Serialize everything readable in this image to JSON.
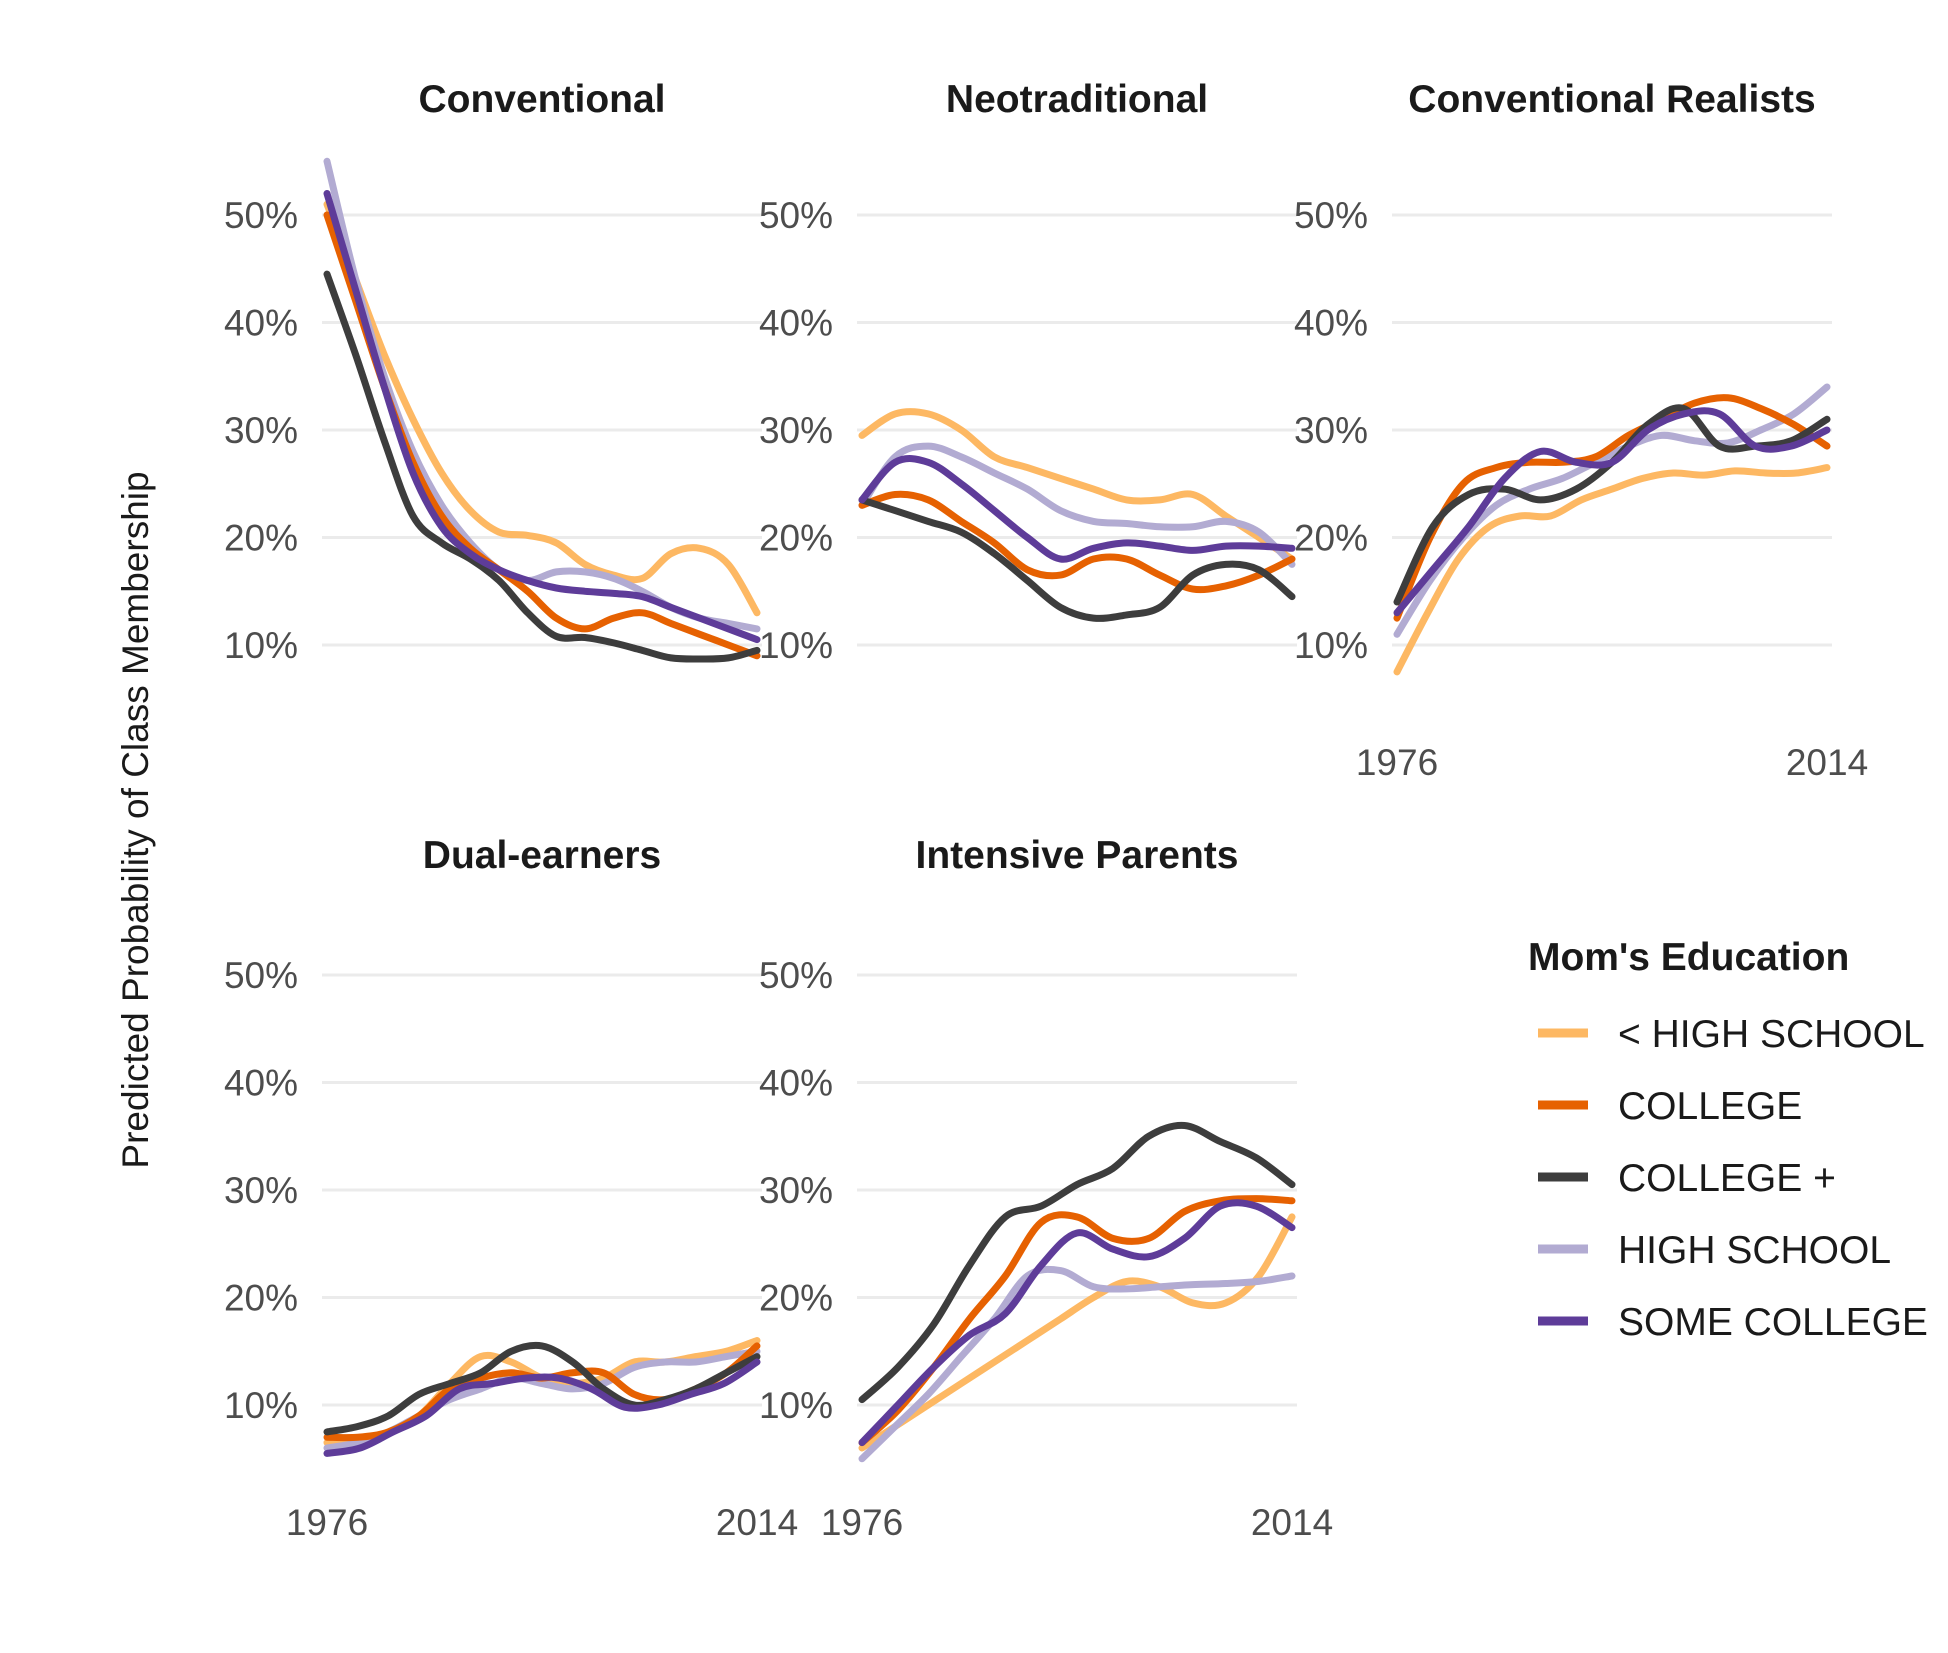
{
  "chart_data": {
    "type": "line",
    "ylabel": "Predicted Probability of Class Membership",
    "x_range": [
      1976,
      2014
    ],
    "x_ticks": [
      "1976",
      "2014"
    ],
    "y_ticks": [
      "10%",
      "20%",
      "30%",
      "40%",
      "50%"
    ],
    "y_range": [
      4,
      55
    ],
    "legend": {
      "title": "Mom's Education",
      "position": "right",
      "entries": [
        "< HIGH SCHOOL",
        "COLLEGE",
        "COLLEGE +",
        "HIGH SCHOOL",
        "SOME COLLEGE"
      ]
    },
    "series_colors": {
      "< HIGH SCHOOL": "#fdb863",
      "COLLEGE": "#e66101",
      "COLLEGE +": "#3d3d3d",
      "HIGH SCHOOL": "#b2abd2",
      "SOME COLLEGE": "#5e3c99"
    },
    "x": [
      1976,
      1978,
      1980,
      1982,
      1984,
      1986,
      1988,
      1990,
      1992,
      1994,
      1996,
      1998,
      2000,
      2002,
      2004,
      2006,
      2008,
      2010,
      2012,
      2014
    ],
    "panels": [
      {
        "title": "Conventional",
        "show_x_ticks": false,
        "series": [
          {
            "name": "< HIGH SCHOOL",
            "values": [
              51,
              44,
              37,
              31,
              26,
              22.5,
              20.5,
              20.2,
              19.5,
              17.5,
              16.5,
              16.2,
              18.5,
              19,
              17.5,
              13
            ]
          },
          {
            "name": "COLLEGE",
            "values": [
              50,
              42,
              34,
              27,
              22,
              19,
              17,
              15,
              12.5,
              11.5,
              12.5,
              13,
              12,
              11,
              10,
              9
            ]
          },
          {
            "name": "COLLEGE +",
            "values": [
              44.5,
              37,
              29,
              22,
              19.5,
              18,
              16,
              13,
              10.8,
              10.7,
              10.2,
              9.5,
              8.8,
              8.7,
              8.8,
              9.5
            ]
          },
          {
            "name": "HIGH SCHOOL",
            "values": [
              55,
              44,
              35,
              28,
              23,
              19.5,
              17,
              16,
              16.8,
              16.8,
              16.2,
              15,
              13.5,
              12.5,
              12,
              11.5
            ]
          },
          {
            "name": "SOME COLLEGE",
            "values": [
              52,
              43,
              34,
              26,
              21,
              18.5,
              17,
              16,
              15.3,
              15,
              14.8,
              14.5,
              13.5,
              12.5,
              11.5,
              10.5
            ]
          }
        ],
        "x_index": [
          0,
          1,
          2,
          3,
          4,
          5,
          6,
          7,
          8,
          9,
          10,
          11,
          12,
          13,
          14,
          15
        ]
      },
      {
        "title": "Neotraditional",
        "show_x_ticks": false,
        "series": [
          {
            "name": "< HIGH SCHOOL",
            "values": [
              29.5,
              31.5,
              31.5,
              30,
              27.5,
              26.5,
              25.5,
              24.5,
              23.5,
              23.5,
              24,
              22,
              20,
              18
            ]
          },
          {
            "name": "COLLEGE",
            "values": [
              23,
              24,
              23.5,
              21.5,
              19.5,
              17,
              16.5,
              18,
              18,
              16.5,
              15.2,
              15.5,
              16.5,
              18
            ]
          },
          {
            "name": "COLLEGE +",
            "values": [
              23.5,
              22.5,
              21.5,
              20.5,
              18.5,
              16,
              13.5,
              12.5,
              12.8,
              13.5,
              16.5,
              17.5,
              17,
              14.5
            ]
          },
          {
            "name": "HIGH SCHOOL",
            "values": [
              23,
              27.5,
              28.5,
              27.5,
              26,
              24.5,
              22.5,
              21.5,
              21.3,
              21,
              21,
              21.5,
              20.5,
              17.5
            ]
          },
          {
            "name": "SOME COLLEGE",
            "values": [
              23.5,
              27,
              27,
              25,
              22.5,
              20,
              18,
              19,
              19.5,
              19.2,
              18.8,
              19.2,
              19.2,
              19
            ]
          }
        ],
        "x_index": [
          0,
          1,
          2,
          3,
          4,
          5,
          6,
          7,
          8,
          9,
          10,
          11,
          12,
          13
        ]
      },
      {
        "title": "Conventional Realists",
        "show_x_ticks": true,
        "series": [
          {
            "name": "< HIGH SCHOOL",
            "values": [
              7.5,
              13,
              18,
              21,
              22,
              22,
              23.5,
              24.5,
              25.5,
              26,
              25.8,
              26.2,
              26,
              26,
              26.5
            ]
          },
          {
            "name": "COLLEGE",
            "values": [
              12.5,
              20,
              25,
              26.5,
              27,
              27,
              27.5,
              29.5,
              31,
              32.5,
              33,
              32,
              30.5,
              28.5
            ]
          },
          {
            "name": "COLLEGE +",
            "values": [
              14,
              21,
              24,
              24.5,
              23.5,
              24.5,
              27,
              30.5,
              32,
              28.5,
              28.5,
              29,
              31
            ]
          },
          {
            "name": "HIGH SCHOOL",
            "values": [
              11,
              16,
              20,
              23,
              24.5,
              25.5,
              27,
              28.5,
              29.5,
              29,
              28.8,
              30,
              31.5,
              34
            ]
          },
          {
            "name": "SOME COLLEGE",
            "values": [
              13,
              17,
              21,
              25.5,
              28,
              27,
              27,
              30,
              31.5,
              31.5,
              28.5,
              28.5,
              30
            ]
          }
        ],
        "x_index": [
          0,
          1,
          2,
          3,
          4,
          5,
          6,
          7,
          8,
          9,
          10,
          11,
          12,
          13,
          14
        ]
      },
      {
        "title": "Dual-earners",
        "show_x_ticks": true,
        "series": [
          {
            "name": "< HIGH SCHOOL",
            "values": [
              6.5,
              6.5,
              7.5,
              9,
              12,
              14.5,
              14,
              12.5,
              12,
              12.5,
              14,
              14,
              14.5,
              15,
              16
            ]
          },
          {
            "name": "COLLEGE",
            "values": [
              7,
              7,
              7.5,
              9,
              11.5,
              12.5,
              13,
              12.5,
              13,
              13,
              11,
              10.5,
              11.5,
              13,
              15.5
            ]
          },
          {
            "name": "COLLEGE +",
            "values": [
              7.5,
              8,
              9,
              11,
              12,
              13,
              15,
              15.5,
              14,
              11.5,
              10,
              10.5,
              11.5,
              13,
              14.5
            ]
          },
          {
            "name": "HIGH SCHOOL",
            "values": [
              6,
              6.5,
              7.5,
              9,
              10.5,
              11.5,
              12.5,
              12,
              11.5,
              12,
              13.5,
              14,
              14,
              14.5,
              15
            ]
          },
          {
            "name": "SOME COLLEGE",
            "values": [
              5.5,
              6,
              7.5,
              9,
              11.5,
              12,
              12.5,
              12.5,
              11.5,
              9.8,
              10,
              11,
              12,
              14
            ]
          }
        ],
        "x_index": [
          0,
          1,
          2,
          3,
          4,
          5,
          6,
          7,
          8,
          9,
          10,
          11,
          12,
          13,
          14
        ]
      },
      {
        "title": "Intensive Parents",
        "show_x_ticks": true,
        "series": [
          {
            "name": "< HIGH SCHOOL",
            "values": [
              6,
              8,
              10,
              12,
              14,
              16,
              18,
              20,
              21.5,
              21,
              19.5,
              19.5,
              22,
              27.5
            ]
          },
          {
            "name": "COLLEGE",
            "values": [
              6.5,
              9.5,
              13.5,
              18,
              22,
              27,
              27.5,
              25.5,
              25.5,
              28,
              29,
              29.2,
              29
            ]
          },
          {
            "name": "COLLEGE +",
            "values": [
              10.5,
              13.5,
              17.5,
              23,
              27.5,
              28.5,
              30.5,
              32,
              35,
              36,
              34.5,
              33,
              30.5
            ]
          },
          {
            "name": "HIGH SCHOOL",
            "values": [
              5,
              8,
              11,
              14.5,
              18,
              22,
              22.5,
              21,
              20.8,
              21,
              21.2,
              21.3,
              21.5,
              22
            ]
          },
          {
            "name": "SOME COLLEGE",
            "values": [
              6.5,
              10,
              13.5,
              16.5,
              18.5,
              23,
              26,
              24.5,
              23.8,
              25.5,
              28.5,
              28.5,
              26.5
            ]
          }
        ],
        "x_index": [
          0,
          1,
          2,
          3,
          4,
          5,
          6,
          7,
          8,
          9,
          10,
          11,
          12,
          13
        ]
      }
    ]
  }
}
